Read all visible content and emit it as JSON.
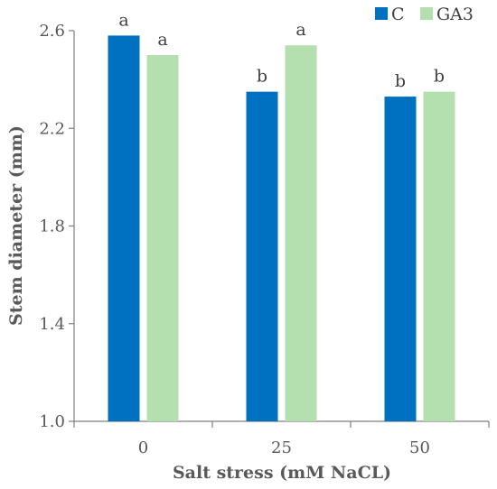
{
  "chart_data": {
    "type": "bar",
    "xlabel": "Salt stress (mM NaCL)",
    "ylabel": "Stem diameter (mm)",
    "categories": [
      "0",
      "25",
      "50"
    ],
    "ylim": [
      1.0,
      2.6
    ],
    "yticks": [
      "1.0",
      "1.4",
      "1.8",
      "2.2",
      "2.6"
    ],
    "yticks_values": [
      1.0,
      1.4,
      1.8,
      2.2,
      2.6
    ],
    "grid": false,
    "legend_position": "top-right",
    "series": [
      {
        "name": "C",
        "color": "#0070c0",
        "values": [
          2.58,
          2.35,
          2.33
        ],
        "labels": [
          "a",
          "b",
          "b"
        ]
      },
      {
        "name": "GA3",
        "color": "#b4dfae",
        "values": [
          2.5,
          2.54,
          2.35
        ],
        "labels": [
          "a",
          "a",
          "b"
        ]
      }
    ]
  }
}
